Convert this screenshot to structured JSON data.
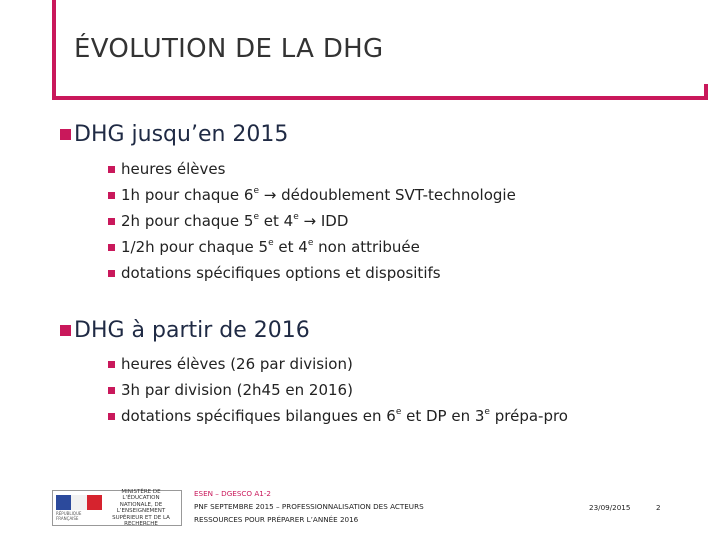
{
  "slide": {
    "title": "ÉVOLUTION DE LA DHG",
    "accent_color": "#c9185b"
  },
  "sections": [
    {
      "heading": "DHG jusqu’en 2015",
      "bullets": [
        "heures élèves",
        "1h pour chaque 6e → dédoublement SVT-technologie",
        "2h pour chaque 5e et 4e → IDD",
        "1/2h pour chaque 5e et 4e non attribuée",
        "dotations spécifiques options et dispositifs"
      ]
    },
    {
      "heading": "DHG à partir de 2016",
      "bullets": [
        "heures élèves (26 par division)",
        "3h par division (2h45 en 2016)",
        "dotations spécifiques bilangues en 6e et DP en 3e prépa-pro"
      ]
    }
  ],
  "footer": {
    "org": "ESEN – DGESCO A1-2",
    "line1": "PNF SEPTEMBRE 2015 – PROFESSIONNALISATION DES ACTEURS",
    "line2": "RESSOURCES POUR PRÉPARER L’ANNÉE 2016",
    "date": "23/09/2015",
    "page": "2",
    "logo_text": "MINISTÈRE DE L’ÉDUCATION NATIONALE, DE L’ENSEIGNEMENT SUPÉRIEUR ET DE LA RECHERCHE",
    "logo_sub": "RÉPUBLIQUE FRANÇAISE"
  }
}
